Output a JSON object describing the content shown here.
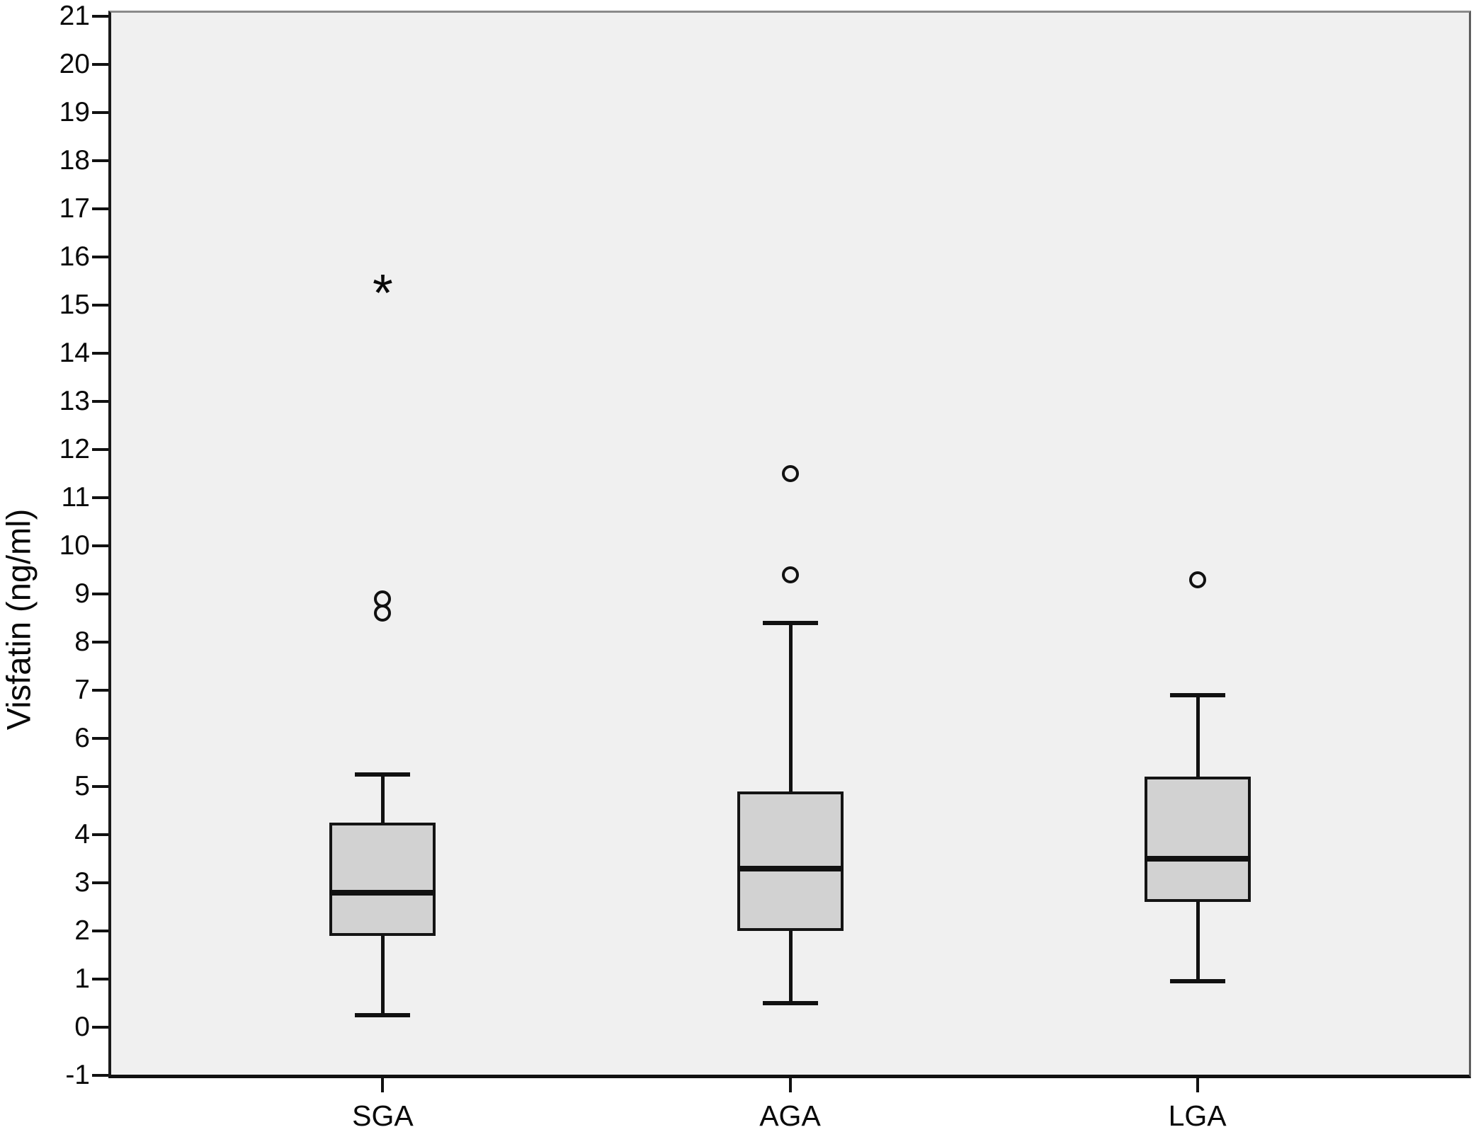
{
  "chart_data": {
    "type": "boxplot",
    "title": "",
    "xlabel": "",
    "ylabel": "Visfatin (ng/ml)",
    "ylim": [
      -1,
      21
    ],
    "y_ticks": [
      21,
      20,
      19,
      18,
      17,
      16,
      15,
      14,
      13,
      12,
      11,
      10,
      9,
      8,
      7,
      6,
      5,
      4,
      3,
      2,
      1,
      0,
      -1
    ],
    "categories": [
      "SGA",
      "AGA",
      "LGA"
    ],
    "series": [
      {
        "category": "SGA",
        "whisker_low": 0.25,
        "q1": 1.9,
        "median": 2.8,
        "q3": 4.25,
        "whisker_high": 5.25,
        "outliers_mild": [
          8.6,
          8.9
        ],
        "outliers_extreme": [
          15.5
        ]
      },
      {
        "category": "AGA",
        "whisker_low": 0.5,
        "q1": 2.0,
        "median": 3.3,
        "q3": 4.9,
        "whisker_high": 8.4,
        "outliers_mild": [
          9.4,
          11.5
        ],
        "outliers_extreme": []
      },
      {
        "category": "LGA",
        "whisker_low": 0.95,
        "q1": 2.6,
        "median": 3.5,
        "q3": 5.2,
        "whisker_high": 6.9,
        "outliers_mild": [
          9.3
        ],
        "outliers_extreme": []
      }
    ],
    "legend": "none",
    "grid": false,
    "plot_bg": "#f0f0f0",
    "box_fill": "#d2d2d2",
    "line_color": "#111111",
    "outlier_marker_mild": "circle",
    "outlier_marker_extreme": "asterisk",
    "extreme_marker_glyph": "*"
  }
}
